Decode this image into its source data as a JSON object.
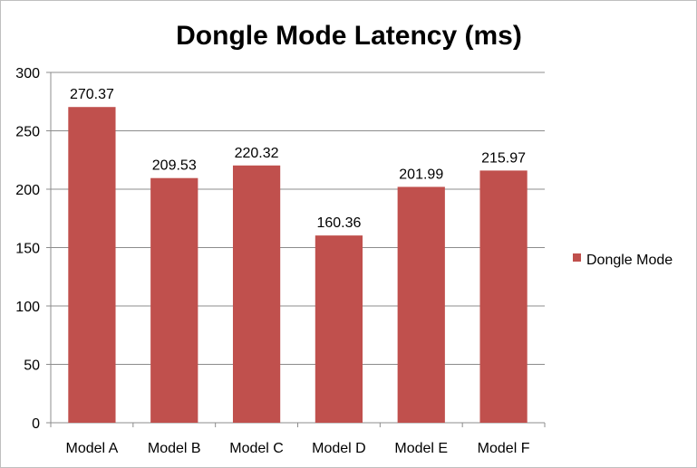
{
  "chart_data": {
    "type": "bar",
    "title": "Dongle Mode Latency (ms)",
    "xlabel": "",
    "ylabel": "",
    "categories": [
      "Model A",
      "Model B",
      "Model C",
      "Model D",
      "Model E",
      "Model F"
    ],
    "series": [
      {
        "name": "Dongle Mode",
        "values": [
          270.37,
          209.53,
          220.32,
          160.36,
          201.99,
          215.97
        ],
        "color": "#c0504d"
      }
    ],
    "data_labels": [
      "270.37",
      "209.53",
      "220.32",
      "160.36",
      "201.99",
      "215.97"
    ],
    "ylim": [
      0,
      300
    ],
    "yticks": [
      0,
      50,
      100,
      150,
      200,
      250,
      300
    ],
    "grid": true,
    "legend_position": "right"
  }
}
